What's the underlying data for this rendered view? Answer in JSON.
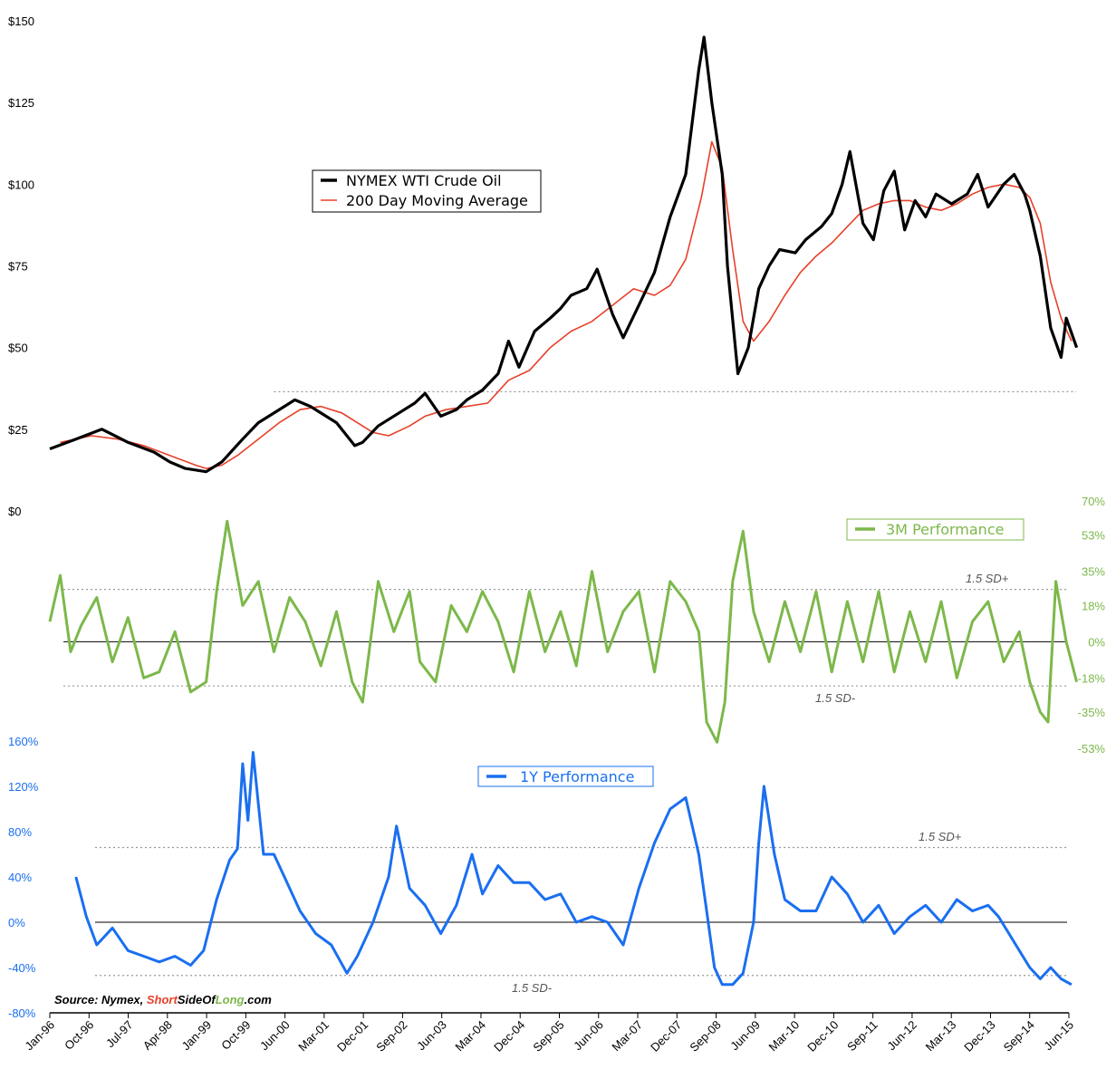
{
  "chart_data": [
    {
      "type": "line",
      "panel": "price",
      "y_tick_labels": [
        "$0",
        "$25",
        "$50",
        "$75",
        "$100",
        "$125",
        "$150"
      ],
      "y_ticks": [
        0,
        25,
        50,
        75,
        100,
        125,
        150
      ],
      "ylim": [
        0,
        150
      ],
      "grid": false,
      "legend_position": "upper-left-center",
      "reference_line": {
        "value": 36.5,
        "style": "dotted"
      },
      "series": [
        {
          "name": "NYMEX WTI Crude Oil",
          "color": "#000000",
          "x": [
            1996.0,
            1996.5,
            1997.0,
            1997.5,
            1998.0,
            1998.3,
            1998.6,
            1999.0,
            1999.3,
            1999.7,
            2000.0,
            2000.5,
            2000.7,
            2001.0,
            2001.5,
            2001.85,
            2002.0,
            2002.3,
            2002.7,
            2003.0,
            2003.2,
            2003.5,
            2003.8,
            2004.0,
            2004.3,
            2004.6,
            2004.8,
            2005.0,
            2005.3,
            2005.6,
            2005.8,
            2006.0,
            2006.3,
            2006.5,
            2006.8,
            2007.0,
            2007.3,
            2007.6,
            2007.9,
            2008.2,
            2008.45,
            2008.55,
            2008.7,
            2008.9,
            2009.0,
            2009.2,
            2009.4,
            2009.6,
            2009.8,
            2010.0,
            2010.3,
            2010.5,
            2010.8,
            2011.0,
            2011.2,
            2011.35,
            2011.6,
            2011.8,
            2012.0,
            2012.2,
            2012.4,
            2012.6,
            2012.8,
            2013.0,
            2013.3,
            2013.6,
            2013.8,
            2014.0,
            2014.3,
            2014.5,
            2014.7,
            2014.8,
            2015.0,
            2015.2,
            2015.4,
            2015.5,
            2015.7
          ],
          "y": [
            19,
            22,
            25,
            21,
            18,
            15,
            13,
            12,
            15,
            22,
            27,
            32,
            34,
            32,
            27,
            20,
            21,
            26,
            30,
            33,
            36,
            29,
            31,
            34,
            37,
            42,
            52,
            44,
            55,
            59,
            62,
            66,
            68,
            74,
            60,
            53,
            63,
            73,
            90,
            103,
            135,
            145,
            125,
            103,
            75,
            42,
            50,
            68,
            75,
            80,
            79,
            83,
            87,
            91,
            100,
            110,
            88,
            83,
            98,
            104,
            86,
            95,
            90,
            97,
            94,
            97,
            103,
            93,
            100,
            103,
            97,
            92,
            78,
            56,
            47,
            59,
            50
          ]
        },
        {
          "name": "200 Day Moving Average",
          "color": "#e8402a",
          "x": [
            1996.2,
            1996.8,
            1997.3,
            1997.8,
            1998.3,
            1998.8,
            1999.0,
            1999.3,
            1999.6,
            2000.0,
            2000.4,
            2000.8,
            2001.2,
            2001.6,
            2001.9,
            2002.2,
            2002.5,
            2002.9,
            2003.2,
            2003.6,
            2004.0,
            2004.4,
            2004.8,
            2005.2,
            2005.6,
            2006.0,
            2006.4,
            2006.8,
            2007.2,
            2007.6,
            2007.9,
            2008.2,
            2008.5,
            2008.7,
            2008.9,
            2009.1,
            2009.3,
            2009.5,
            2009.8,
            2010.1,
            2010.4,
            2010.7,
            2011.0,
            2011.3,
            2011.6,
            2011.9,
            2012.2,
            2012.5,
            2012.8,
            2013.1,
            2013.4,
            2013.7,
            2014.0,
            2014.3,
            2014.6,
            2014.8,
            2015.0,
            2015.2,
            2015.4,
            2015.6
          ],
          "y": [
            21,
            23,
            22,
            20,
            17,
            14,
            13,
            14,
            17,
            22,
            27,
            31,
            32,
            30,
            27,
            24,
            23,
            26,
            29,
            31,
            32,
            33,
            40,
            43,
            50,
            55,
            58,
            63,
            68,
            66,
            69,
            77,
            96,
            113,
            105,
            80,
            58,
            52,
            58,
            66,
            73,
            78,
            82,
            87,
            92,
            94,
            95,
            95,
            93,
            92,
            94,
            97,
            99,
            100,
            99,
            96,
            88,
            70,
            59,
            52
          ]
        }
      ]
    },
    {
      "type": "line",
      "panel": "3M Performance",
      "y_tick_labels": [
        "70%",
        "53%",
        "35%",
        "18%",
        "0%",
        "-18%",
        "-35%",
        "-53%"
      ],
      "y_ticks": [
        70,
        53,
        35,
        18,
        0,
        -18,
        -35,
        -53
      ],
      "axis_side": "right",
      "ylim": [
        -53,
        70
      ],
      "zero_line": true,
      "thresholds": [
        {
          "label": "1.5 SD+",
          "value": 26
        },
        {
          "label": "1.5 SD-",
          "value": -22
        }
      ],
      "series": [
        {
          "name": "3M Performance",
          "color": "#7cb84a",
          "x": [
            1996.0,
            1996.2,
            1996.4,
            1996.6,
            1996.9,
            1997.2,
            1997.5,
            1997.8,
            1998.1,
            1998.4,
            1998.7,
            1999.0,
            1999.2,
            1999.4,
            1999.7,
            2000.0,
            2000.3,
            2000.6,
            2000.9,
            2001.2,
            2001.5,
            2001.8,
            2002.0,
            2002.3,
            2002.6,
            2002.9,
            2003.1,
            2003.4,
            2003.7,
            2004.0,
            2004.3,
            2004.6,
            2004.9,
            2005.2,
            2005.5,
            2005.8,
            2006.1,
            2006.4,
            2006.7,
            2007.0,
            2007.3,
            2007.6,
            2007.9,
            2008.2,
            2008.45,
            2008.6,
            2008.8,
            2008.95,
            2009.1,
            2009.3,
            2009.5,
            2009.8,
            2010.1,
            2010.4,
            2010.7,
            2011.0,
            2011.3,
            2011.6,
            2011.9,
            2012.2,
            2012.5,
            2012.8,
            2013.1,
            2013.4,
            2013.7,
            2014.0,
            2014.3,
            2014.6,
            2014.8,
            2015.0,
            2015.15,
            2015.3,
            2015.5,
            2015.7
          ],
          "y": [
            10,
            33,
            -5,
            8,
            22,
            -10,
            12,
            -18,
            -15,
            5,
            -25,
            -20,
            25,
            60,
            18,
            30,
            -5,
            22,
            10,
            -12,
            15,
            -20,
            -30,
            30,
            5,
            25,
            -10,
            -20,
            18,
            5,
            25,
            10,
            -15,
            25,
            -5,
            15,
            -12,
            35,
            -5,
            15,
            25,
            -15,
            30,
            20,
            5,
            -40,
            -50,
            -30,
            30,
            55,
            15,
            -10,
            20,
            -5,
            25,
            -15,
            20,
            -10,
            25,
            -15,
            15,
            -10,
            20,
            -18,
            10,
            20,
            -10,
            5,
            -20,
            -35,
            -40,
            30,
            0,
            -20
          ]
        }
      ]
    },
    {
      "type": "line",
      "panel": "1Y Performance",
      "y_tick_labels": [
        "160%",
        "120%",
        "80%",
        "40%",
        "0%",
        "-40%",
        "-80%"
      ],
      "y_ticks": [
        160,
        120,
        80,
        40,
        0,
        -40,
        -80
      ],
      "ylim": [
        -80,
        160
      ],
      "zero_line": true,
      "thresholds": [
        {
          "label": "1.5 SD+",
          "value": 66
        },
        {
          "label": "1.5 SD-",
          "value": -47
        }
      ],
      "series": [
        {
          "name": "1Y Performance",
          "color": "#1a6ff0",
          "x": [
            1996.5,
            1996.7,
            1996.9,
            1997.2,
            1997.5,
            1997.8,
            1998.1,
            1998.4,
            1998.7,
            1998.95,
            1999.2,
            1999.45,
            1999.6,
            1999.7,
            1999.8,
            1999.9,
            2000.1,
            2000.3,
            2000.5,
            2000.8,
            2001.1,
            2001.4,
            2001.7,
            2001.9,
            2002.2,
            2002.5,
            2002.65,
            2002.9,
            2003.2,
            2003.5,
            2003.8,
            2004.1,
            2004.3,
            2004.6,
            2004.9,
            2005.2,
            2005.5,
            2005.8,
            2006.1,
            2006.4,
            2006.7,
            2007.0,
            2007.3,
            2007.6,
            2007.9,
            2008.2,
            2008.45,
            2008.6,
            2008.75,
            2008.9,
            2009.1,
            2009.3,
            2009.5,
            2009.6,
            2009.7,
            2009.9,
            2010.1,
            2010.4,
            2010.7,
            2011.0,
            2011.3,
            2011.6,
            2011.9,
            2012.2,
            2012.5,
            2012.8,
            2013.1,
            2013.4,
            2013.7,
            2014.0,
            2014.2,
            2014.4,
            2014.6,
            2014.8,
            2015.0,
            2015.2,
            2015.4,
            2015.6
          ],
          "y": [
            40,
            5,
            -20,
            -5,
            -25,
            -30,
            -35,
            -30,
            -38,
            -25,
            20,
            55,
            65,
            140,
            90,
            150,
            60,
            60,
            40,
            10,
            -10,
            -20,
            -45,
            -30,
            0,
            40,
            85,
            30,
            15,
            -10,
            15,
            60,
            25,
            50,
            35,
            35,
            20,
            25,
            0,
            5,
            0,
            -20,
            30,
            70,
            100,
            110,
            60,
            10,
            -40,
            -55,
            -55,
            -45,
            0,
            70,
            120,
            60,
            20,
            10,
            10,
            40,
            25,
            0,
            15,
            -10,
            5,
            15,
            0,
            20,
            10,
            15,
            5,
            -10,
            -25,
            -40,
            -50,
            -40,
            -50,
            -55
          ]
        }
      ]
    }
  ],
  "legends": {
    "price": [
      "NYMEX WTI Crude Oil",
      "200 Day Moving Average"
    ],
    "perf3m": "3M Performance",
    "perf1y": "1Y Performance"
  },
  "sd_labels": {
    "p3_plus": "1.5 SD+",
    "p3_minus": "1.5 SD-",
    "p1_plus": "1.5 SD+",
    "p1_minus": "1.5 SD-"
  },
  "source": {
    "prefix": "Source: Nymex, ",
    "brand_short": "Short",
    "brand_side": "SideOf",
    "brand_long": "Long",
    "suffix": ".com"
  },
  "x_tick_labels": [
    "Jan-96",
    "Oct-96",
    "Jul-97",
    "Apr-98",
    "Jan-99",
    "Oct-99",
    "Jun-00",
    "Mar-01",
    "Dec-01",
    "Sep-02",
    "Jun-03",
    "Mar-04",
    "Dec-04",
    "Sep-05",
    "Jun-06",
    "Mar-07",
    "Dec-07",
    "Sep-08",
    "Jun-09",
    "Mar-10",
    "Dec-10",
    "Sep-11",
    "Jun-12",
    "Mar-13",
    "Dec-13",
    "Sep-14",
    "Jun-15"
  ],
  "colors": {
    "price": "#000000",
    "ma": "#e8402a",
    "green": "#7cb84a",
    "blue": "#1a6ff0",
    "dotted": "#999999",
    "brand_red": "#e8402a",
    "brand_green": "#7cb84a"
  }
}
